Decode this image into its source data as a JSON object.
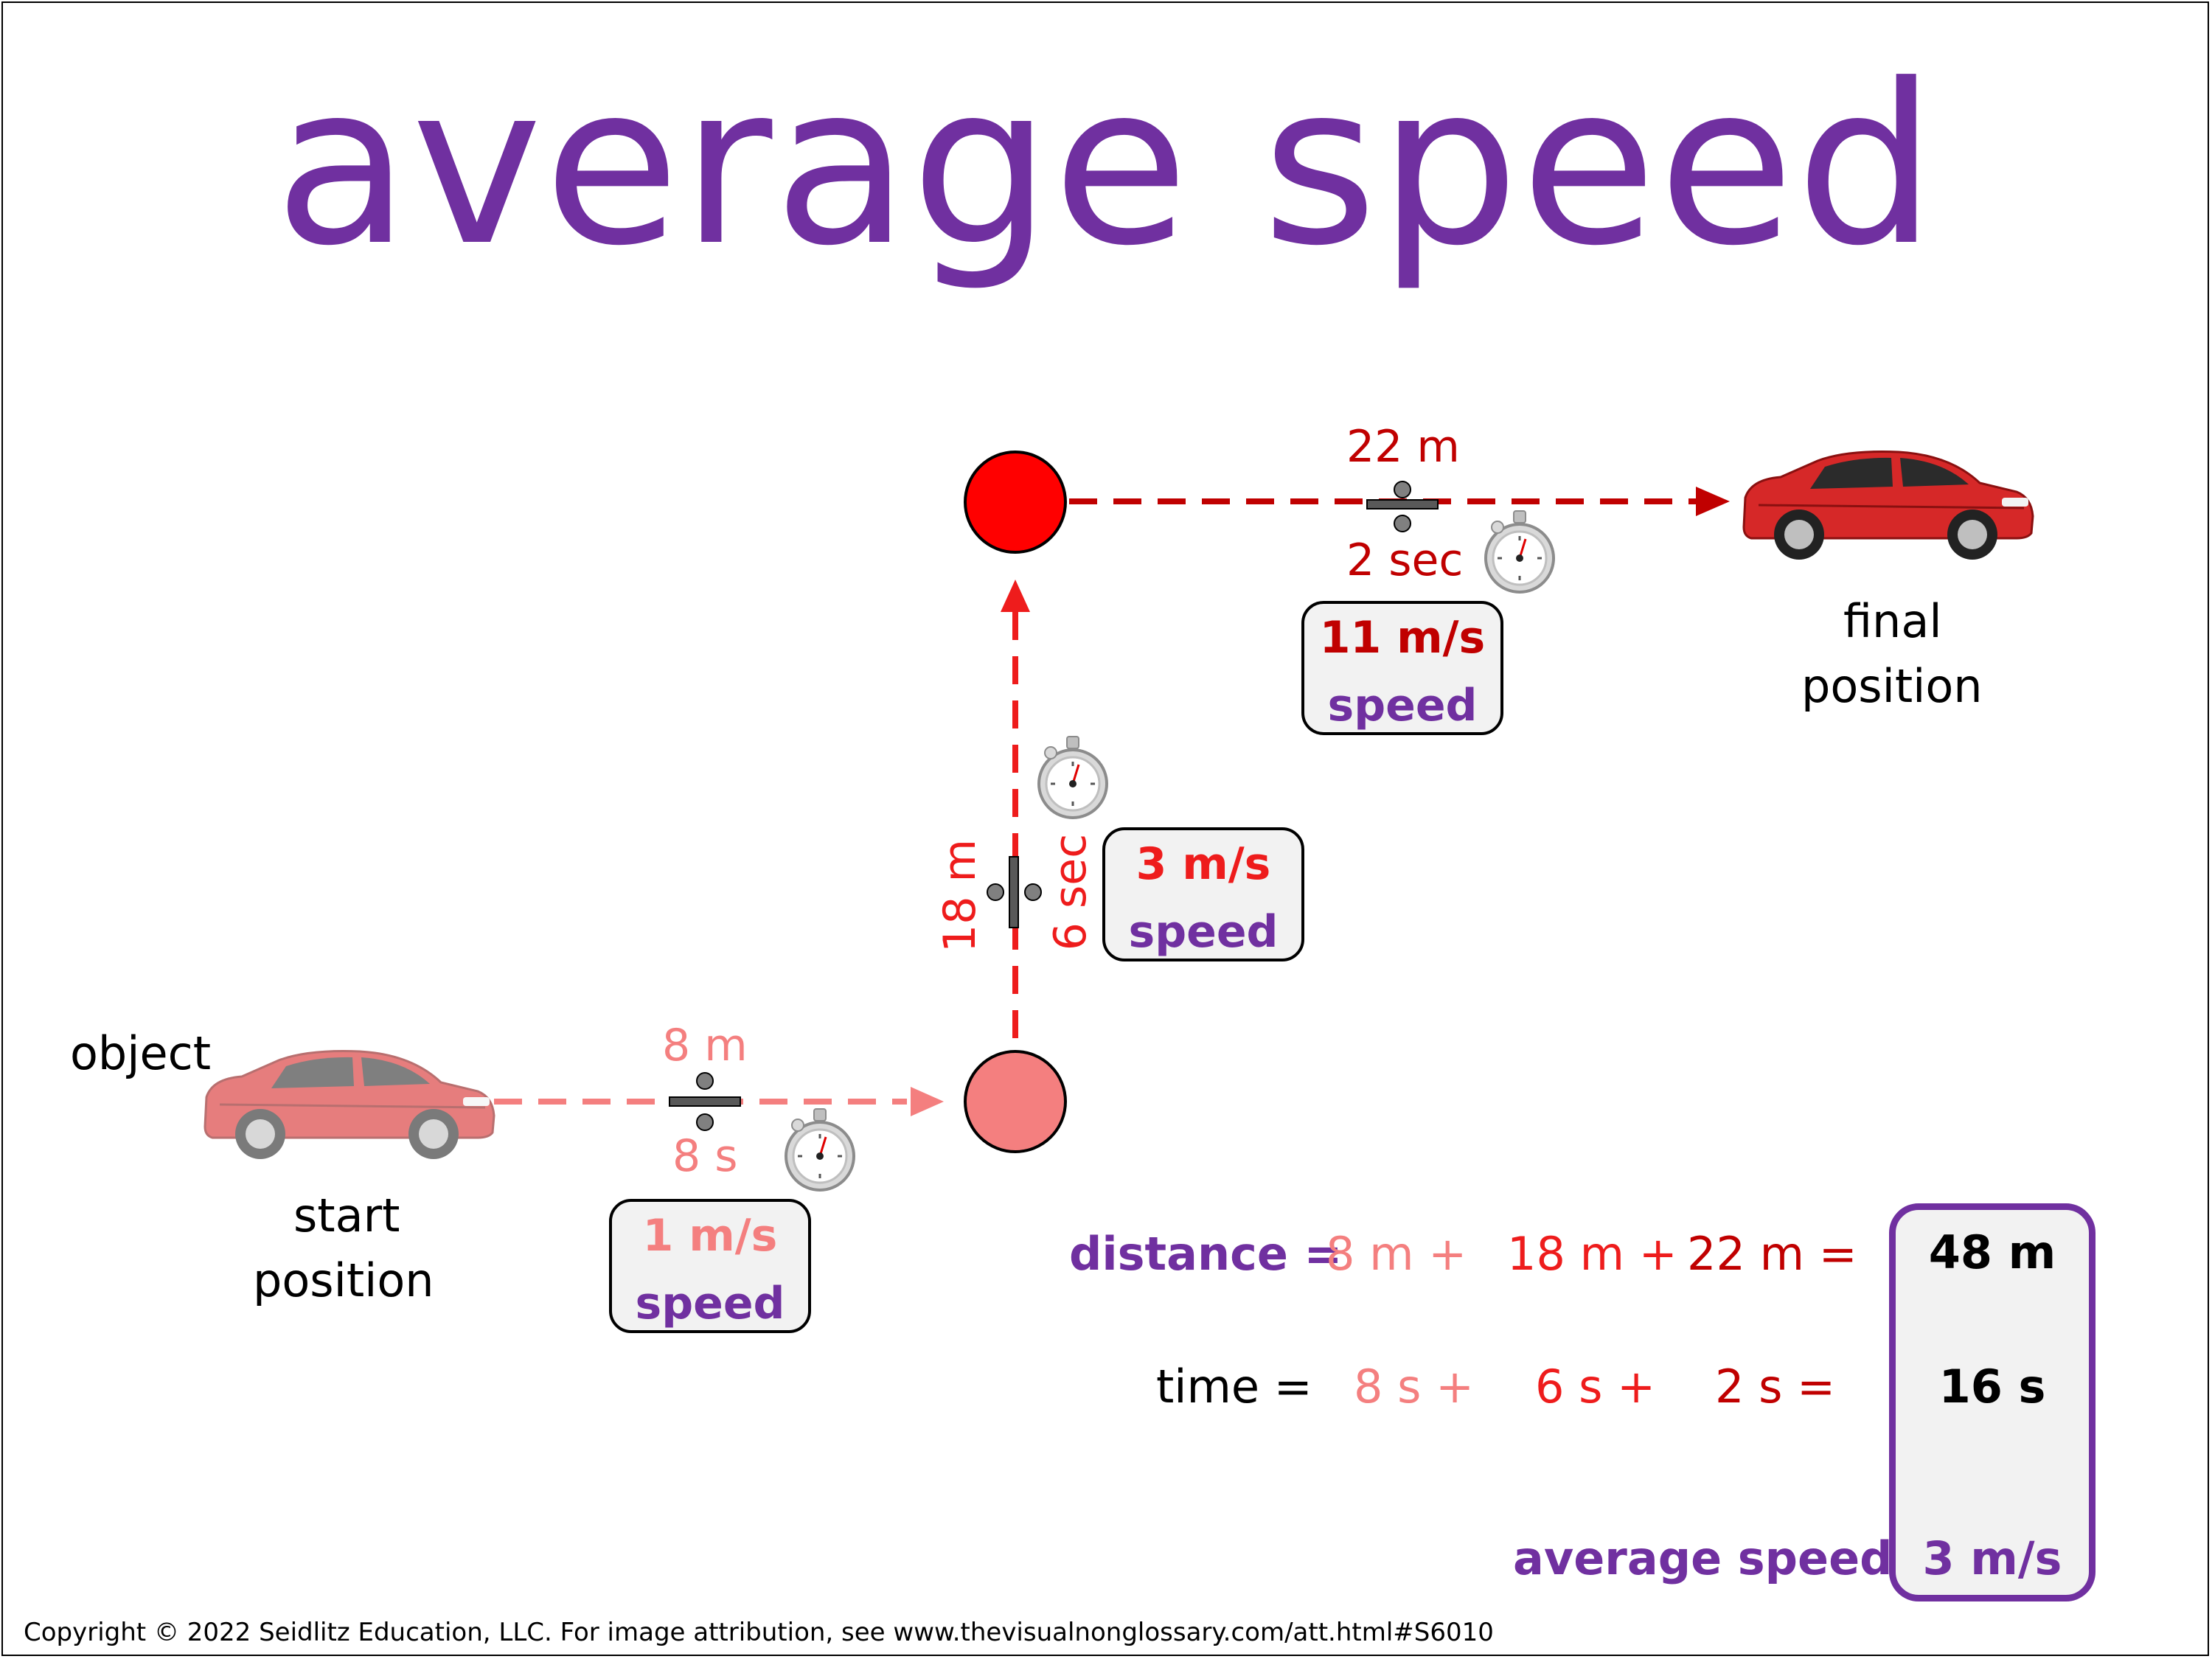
{
  "title": "average speed",
  "labels": {
    "object": "object",
    "start_position": [
      "start",
      "position"
    ],
    "final_position": [
      "final",
      "position"
    ]
  },
  "segments": [
    {
      "distance": "8 m",
      "time": "8 s",
      "speed": "1 m/s",
      "speed_label": "speed",
      "color": "#f47f7f"
    },
    {
      "distance": "18 m",
      "time": "6 sec",
      "speed": "3 m/s",
      "speed_label": "speed",
      "color": "#ee1c1c"
    },
    {
      "distance": "22 m",
      "time": "2 sec",
      "speed": "11 m/s",
      "speed_label": "speed",
      "color": "#c00000"
    }
  ],
  "totals": {
    "distance_label": "distance =",
    "distance_terms": [
      "8 m +",
      "18 m +",
      "22 m ="
    ],
    "time_label": "time =",
    "time_terms": [
      "8 s +",
      "6 s +",
      "2 s ="
    ],
    "total_distance": "48 m",
    "total_time": "16 s",
    "average_label": "average speed:",
    "average_value": "3 m/s"
  },
  "colors": {
    "title": "#7030a0",
    "segment1": "#f47f7f",
    "segment2": "#ee1c1c",
    "segment3": "#c00000",
    "car": "#d62828",
    "box_fill": "#f2f2f2"
  },
  "icons": [
    "car-icon",
    "stopwatch-icon",
    "divide-symbol-icon",
    "equals-symbol-icon"
  ],
  "copyright": "Copyright © 2022 Seidlitz Education, LLC.  For image attribution, see www.thevisualnonglossary.com/att.html#S6010"
}
